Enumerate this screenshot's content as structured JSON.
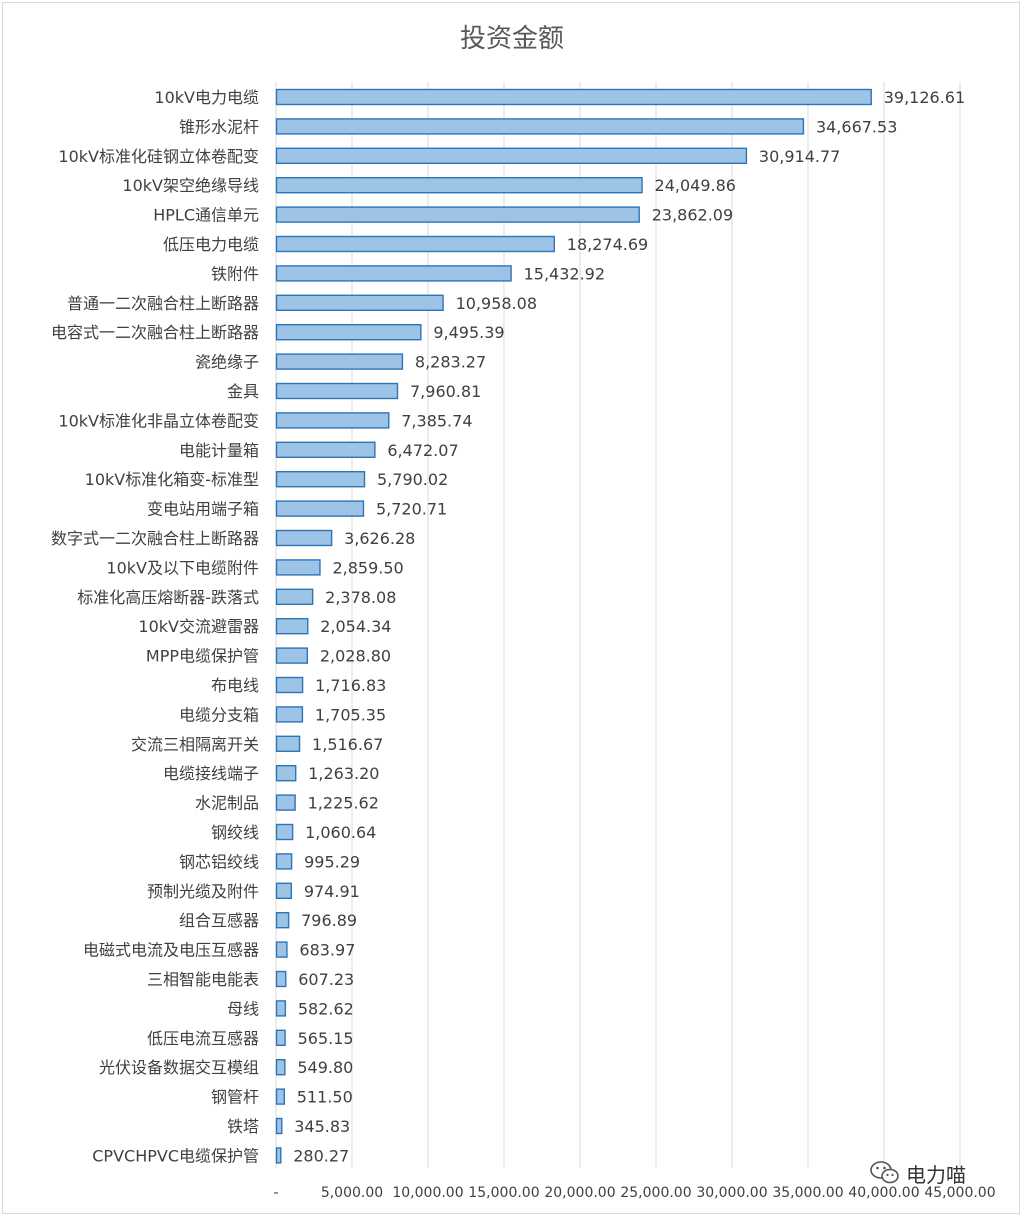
{
  "chart_data": {
    "type": "bar",
    "orientation": "horizontal",
    "title": "投资金额",
    "categories": [
      "10kV电力电缆",
      "锥形水泥杆",
      "10kV标准化硅钢立体卷配变",
      "10kV架空绝缘导线",
      "HPLC通信单元",
      "低压电力电缆",
      "铁附件",
      "普通一二次融合柱上断路器",
      "电容式一二次融合柱上断路器",
      "瓷绝缘子",
      "金具",
      "10kV标准化非晶立体卷配变",
      "电能计量箱",
      "10kV标准化箱变-标准型",
      "变电站用端子箱",
      "数字式一二次融合柱上断路器",
      "10kV及以下电缆附件",
      "标准化高压熔断器-跌落式",
      "10kV交流避雷器",
      "MPP电缆保护管",
      "布电线",
      "电缆分支箱",
      "交流三相隔离开关",
      "电缆接线端子",
      "水泥制品",
      "钢绞线",
      "钢芯铝绞线",
      "预制光缆及附件",
      "组合互感器",
      "电磁式电流及电压互感器",
      "三相智能电能表",
      "母线",
      "低压电流互感器",
      "光伏设备数据交互模组",
      "钢管杆",
      "铁塔",
      "CPVCHPVC电缆保护管"
    ],
    "values": [
      39126.61,
      34667.53,
      30914.77,
      24049.86,
      23862.09,
      18274.69,
      15432.92,
      10958.08,
      9495.39,
      8283.27,
      7960.81,
      7385.74,
      6472.07,
      5790.02,
      5720.71,
      3626.28,
      2859.5,
      2378.08,
      2054.34,
      2028.8,
      1716.83,
      1705.35,
      1516.67,
      1263.2,
      1225.62,
      1060.64,
      995.29,
      974.91,
      796.89,
      683.97,
      607.23,
      582.62,
      565.15,
      549.8,
      511.5,
      345.83,
      280.27
    ],
    "value_labels": [
      "39,126.61",
      "34,667.53",
      "30,914.77",
      "24,049.86",
      "23,862.09",
      "18,274.69",
      "15,432.92",
      "10,958.08",
      "9,495.39",
      "8,283.27",
      "7,960.81",
      "7,385.74",
      "6,472.07",
      "5,790.02",
      "5,720.71",
      "3,626.28",
      "2,859.50",
      "2,378.08",
      "2,054.34",
      "2,028.80",
      "1,716.83",
      "1,705.35",
      "1,516.67",
      "1,263.20",
      "1,225.62",
      "1,060.64",
      "995.29",
      "974.91",
      "796.89",
      "683.97",
      "607.23",
      "582.62",
      "565.15",
      "549.80",
      "511.50",
      "345.83",
      "280.27"
    ],
    "xlim": [
      0,
      45000
    ],
    "x_ticks": [
      0,
      5000,
      10000,
      15000,
      20000,
      25000,
      30000,
      35000,
      40000,
      45000
    ],
    "x_tick_labels": [
      "-",
      "5,000.00",
      "10,000.00",
      "15,000.00",
      "20,000.00",
      "25,000.00",
      "30,000.00",
      "35,000.00",
      "40,000.00",
      "45,000.00"
    ],
    "grid": true,
    "legend": "none",
    "colors": {
      "bar_fill": "#9dc3e6",
      "bar_stroke": "#2e75b6",
      "grid": "#d9d9d9",
      "text": "#404040"
    }
  },
  "watermark": {
    "text": "电力喵",
    "icon": "wechat-icon"
  }
}
